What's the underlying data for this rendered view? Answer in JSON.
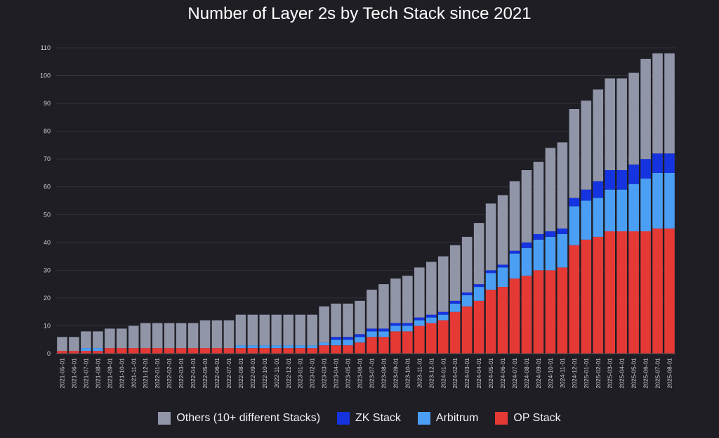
{
  "chart_data": {
    "type": "bar",
    "stacked": true,
    "title": "Number of Layer 2s by Tech Stack since 2021",
    "xlabel": "",
    "ylabel": "",
    "ylim": [
      0,
      110
    ],
    "yticks": [
      0,
      10,
      20,
      30,
      40,
      50,
      60,
      70,
      80,
      90,
      100,
      110
    ],
    "grid": true,
    "legend_position": "bottom-center",
    "categories": [
      "2021-05-01",
      "2021-06-01",
      "2021-07-01",
      "2021-08-01",
      "2021-09-01",
      "2021-10-01",
      "2021-11-01",
      "2021-12-01",
      "2022-01-01",
      "2022-02-01",
      "2022-03-01",
      "2022-04-01",
      "2022-05-01",
      "2022-06-01",
      "2022-07-01",
      "2022-08-01",
      "2022-09-01",
      "2022-10-01",
      "2022-11-01",
      "2022-12-01",
      "2023-01-01",
      "2023-02-01",
      "2023-03-01",
      "2023-04-01",
      "2023-05-01",
      "2023-06-01",
      "2023-07-01",
      "2023-08-01",
      "2023-09-01",
      "2023-10-01",
      "2023-11-01",
      "2023-12-01",
      "2024-01-01",
      "2024-02-01",
      "2024-03-01",
      "2024-04-01",
      "2024-05-01",
      "2024-06-01",
      "2024-07-01",
      "2024-08-01",
      "2024-09-01",
      "2024-10-01",
      "2024-11-01",
      "2024-12-01",
      "2025-01-01",
      "2025-02-01",
      "2025-03-01",
      "2025-04-01",
      "2025-05-01",
      "2025-06-01",
      "2025-07-01",
      "2025-08-01"
    ],
    "series": [
      {
        "name": "OP Stack",
        "color": "#e53935",
        "values": [
          1,
          1,
          1,
          1,
          2,
          2,
          2,
          2,
          2,
          2,
          2,
          2,
          2,
          2,
          2,
          2,
          2,
          2,
          2,
          2,
          2,
          2,
          3,
          3,
          3,
          4,
          6,
          6,
          8,
          8,
          10,
          11,
          12,
          15,
          17,
          19,
          23,
          24,
          27,
          28,
          30,
          30,
          31,
          39,
          41,
          42,
          44,
          44,
          44,
          44,
          45,
          45
        ]
      },
      {
        "name": "Arbitrum",
        "color": "#4a9ff5",
        "values": [
          0,
          0,
          1,
          1,
          0,
          0,
          0,
          0,
          0,
          0,
          0,
          0,
          0,
          0,
          0,
          1,
          1,
          1,
          1,
          1,
          1,
          1,
          1,
          2,
          2,
          2,
          2,
          2,
          2,
          2,
          2,
          2,
          2,
          3,
          4,
          5,
          6,
          7,
          9,
          10,
          11,
          12,
          12,
          14,
          14,
          14,
          15,
          15,
          17,
          19,
          20,
          20
        ]
      },
      {
        "name": "ZK Stack",
        "color": "#1534e0",
        "values": [
          0,
          0,
          0,
          0,
          0,
          0,
          0,
          0,
          0,
          0,
          0,
          0,
          0,
          0,
          0,
          0,
          0,
          0,
          0,
          0,
          0,
          0,
          0,
          1,
          1,
          1,
          1,
          1,
          1,
          1,
          1,
          1,
          1,
          1,
          1,
          1,
          1,
          1,
          1,
          2,
          2,
          2,
          2,
          3,
          4,
          6,
          7,
          7,
          7,
          7,
          7,
          7
        ]
      },
      {
        "name": "Others (10+ different Stacks)",
        "color": "#9095a8",
        "values": [
          5,
          5,
          6,
          6,
          7,
          7,
          8,
          9,
          9,
          9,
          9,
          9,
          10,
          10,
          10,
          11,
          11,
          11,
          11,
          11,
          11,
          11,
          13,
          12,
          12,
          12,
          14,
          16,
          16,
          17,
          18,
          19,
          20,
          20,
          20,
          22,
          24,
          25,
          25,
          26,
          26,
          30,
          31,
          32,
          32,
          33,
          33,
          33,
          33,
          36,
          36,
          36
        ]
      }
    ]
  },
  "legend": [
    {
      "label": "Others (10+ different Stacks)",
      "color": "#9095a8"
    },
    {
      "label": "ZK Stack",
      "color": "#1534e0"
    },
    {
      "label": "Arbitrum",
      "color": "#4a9ff5"
    },
    {
      "label": "OP Stack",
      "color": "#e53935"
    }
  ]
}
